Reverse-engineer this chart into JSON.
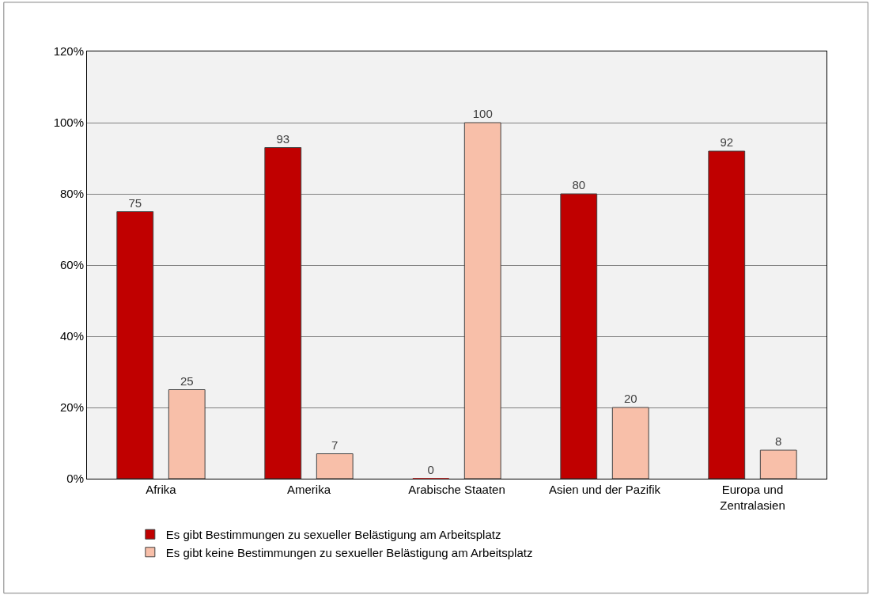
{
  "chart_data": {
    "type": "bar",
    "categories": [
      "Afrika",
      "Amerika",
      "Arabische Staaten",
      "Asien und der Pazifik",
      "Europa und Zentralasien"
    ],
    "series": [
      {
        "name": "Es gibt Bestimmungen zu sexueller Belästigung am Arbeitsplatz",
        "color": "#c00000",
        "values": [
          75,
          93,
          0,
          80,
          92
        ]
      },
      {
        "name": "Es gibt keine Bestimmungen zu sexueller Belästigung am Arbeitsplatz",
        "color": "#f8bfa9",
        "values": [
          25,
          7,
          100,
          20,
          8
        ]
      }
    ],
    "ylim": [
      0,
      120
    ],
    "yticks": [
      {
        "value": 0,
        "label": "0%"
      },
      {
        "value": 20,
        "label": "20%"
      },
      {
        "value": 40,
        "label": "40%"
      },
      {
        "value": 60,
        "label": "60%"
      },
      {
        "value": 80,
        "label": "80%"
      },
      {
        "value": 100,
        "label": "100%"
      },
      {
        "value": 120,
        "label": "120%"
      }
    ],
    "grid": "y",
    "legend": "bottom",
    "data_labels": true
  }
}
